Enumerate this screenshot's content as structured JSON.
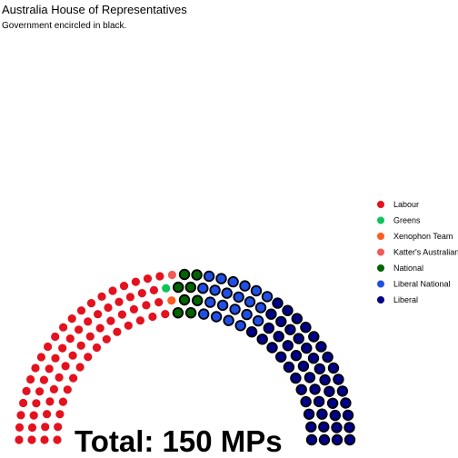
{
  "chart_data": {
    "type": "parliament",
    "title": "Australia House of Representatives",
    "subtitle": "Government encircled in black.",
    "total_label": "Total: 150 MPs",
    "total_seats": 150,
    "rows": 4,
    "parties": [
      {
        "name": "Labour",
        "seats": 69,
        "color": "#e3121e",
        "government": false
      },
      {
        "name": "Greens",
        "seats": 1,
        "color": "#10c25b",
        "government": false
      },
      {
        "name": "Xenophon Team",
        "seats": 1,
        "color": "#ff5a1f",
        "government": false
      },
      {
        "name": "Katter's Australian",
        "seats": 1,
        "color": "#f25a5a",
        "government": false
      },
      {
        "name": "National",
        "seats": 8,
        "color": "#006400",
        "government": true
      },
      {
        "name": "Liberal National",
        "seats": 21,
        "color": "#1f4fe6",
        "government": true
      },
      {
        "name": "Liberal",
        "seats": 49,
        "color": "#00008b",
        "government": true
      }
    ],
    "legend_position": "right"
  }
}
